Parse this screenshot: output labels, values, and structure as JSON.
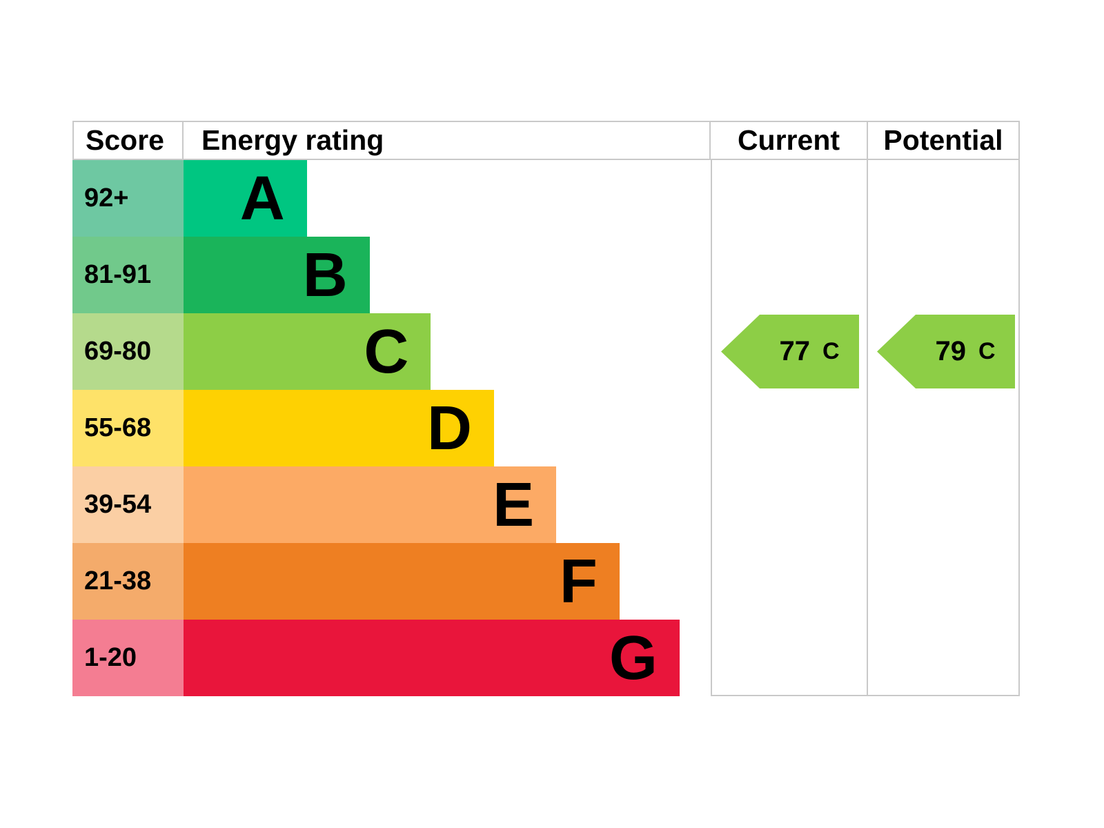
{
  "header": {
    "score": "Score",
    "energy_rating": "Energy rating",
    "current": "Current",
    "potential": "Potential"
  },
  "bands": [
    {
      "letter": "A",
      "score": "92+",
      "bar_color": "#00c681",
      "score_color": "#6ec8a2",
      "width_pct": 23.4
    },
    {
      "letter": "B",
      "score": "81-91",
      "bar_color": "#1ab45a",
      "score_color": "#71c98b",
      "width_pct": 35.3
    },
    {
      "letter": "C",
      "score": "69-80",
      "bar_color": "#8dce46",
      "score_color": "#b5da8c",
      "width_pct": 46.9
    },
    {
      "letter": "D",
      "score": "55-68",
      "bar_color": "#fed102",
      "score_color": "#fee269",
      "width_pct": 58.9
    },
    {
      "letter": "E",
      "score": "39-54",
      "bar_color": "#fcaa65",
      "score_color": "#fbcfa4",
      "width_pct": 70.7
    },
    {
      "letter": "F",
      "score": "21-38",
      "bar_color": "#ee7f22",
      "score_color": "#f4ab6b",
      "width_pct": 82.7
    },
    {
      "letter": "G",
      "score": "1-20",
      "bar_color": "#e9153b",
      "score_color": "#f47d92",
      "width_pct": 94.1
    }
  ],
  "current": {
    "value": "77",
    "letter": "C",
    "arrow_color": "#8dce46",
    "band_index": 2
  },
  "potential": {
    "value": "79",
    "letter": "C",
    "arrow_color": "#8dce46",
    "band_index": 2
  },
  "colors": {
    "border": "#c9c9c9",
    "text": "#000000",
    "background": "#ffffff"
  },
  "chart_data": {
    "type": "bar",
    "title": "Energy rating",
    "categories": [
      "A",
      "B",
      "C",
      "D",
      "E",
      "F",
      "G"
    ],
    "score_ranges": [
      "92+",
      "81-91",
      "69-80",
      "55-68",
      "39-54",
      "21-38",
      "1-20"
    ],
    "bar_relative_widths_pct": [
      23.4,
      35.3,
      46.9,
      58.9,
      70.7,
      82.7,
      94.1
    ],
    "bar_colors": [
      "#00c681",
      "#1ab45a",
      "#8dce46",
      "#fed102",
      "#fcaa65",
      "#ee7f22",
      "#e9153b"
    ],
    "current": {
      "score": 77,
      "rating": "C"
    },
    "potential": {
      "score": 79,
      "rating": "C"
    },
    "legend_position": "none",
    "grid": false
  }
}
